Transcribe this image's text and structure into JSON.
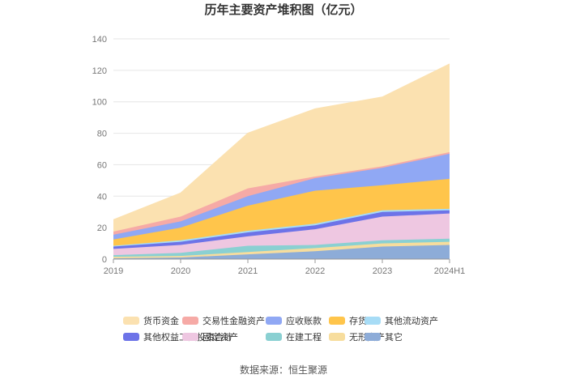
{
  "chart_data": {
    "type": "area",
    "stacked": true,
    "title": "历年主要资产堆积图（亿元）",
    "source": "数据来源：恒生聚源",
    "categories": [
      "2019",
      "2020",
      "2021",
      "2022",
      "2023",
      "2024H1"
    ],
    "ylim": [
      0,
      140
    ],
    "yticks": [
      0,
      20,
      40,
      60,
      80,
      100,
      120,
      140
    ],
    "legend_position": "bottom",
    "grid": true,
    "series": [
      {
        "name": "其它",
        "color": "#8dacd8",
        "values": [
          0.5,
          1,
          3,
          5,
          8,
          9
        ]
      },
      {
        "name": "无形资产",
        "color": "#f7dd9d",
        "values": [
          1,
          1,
          1.5,
          2,
          2,
          2
        ]
      },
      {
        "name": "在建工程",
        "color": "#8ad0d2",
        "values": [
          1,
          2,
          4,
          2,
          2,
          2
        ]
      },
      {
        "name": "固定资产",
        "color": "#eec7e1",
        "values": [
          4,
          5,
          6,
          10,
          15,
          16
        ]
      },
      {
        "name": "其他权益工具投资合计",
        "color": "#6d73e8",
        "values": [
          1.5,
          2,
          2.5,
          2.5,
          3,
          2
        ]
      },
      {
        "name": "其他流动资产",
        "color": "#a7dcf6",
        "values": [
          0.5,
          1,
          1,
          1,
          1,
          1
        ]
      },
      {
        "name": "存货",
        "color": "#ffc54b",
        "values": [
          4,
          8,
          16,
          21,
          16,
          19
        ]
      },
      {
        "name": "应收账款",
        "color": "#90a8f4",
        "values": [
          3,
          4,
          6,
          8,
          11,
          16
        ]
      },
      {
        "name": "交易性金融资产",
        "color": "#f6aaa6",
        "values": [
          2,
          3,
          5,
          1,
          1,
          1
        ]
      },
      {
        "name": "货币资金",
        "color": "#fbe1b0",
        "values": [
          7.5,
          15,
          35,
          43,
          44,
          56
        ]
      }
    ]
  }
}
